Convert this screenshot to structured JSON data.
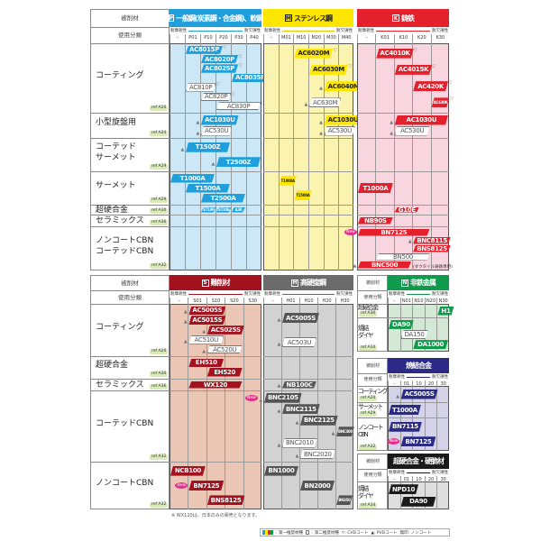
{
  "common": {
    "material": "被削材",
    "usage": "使用分類",
    "wear": "耐摩耗性",
    "chipping": "耐欠損性"
  },
  "top": {
    "rows": [
      {
        "label": "コーティング",
        "ref": "A20"
      },
      {
        "label": "小型旋盤用",
        "ref": "A24"
      },
      {
        "label": "コーテッド\n  サーメット",
        "ref": "A29"
      },
      {
        "label": "サーメット",
        "ref": "A29"
      },
      {
        "label": "超硬合金",
        "ref": "A30"
      },
      {
        "label": "セラミックス",
        "ref": "A36"
      },
      {
        "label": "ノンコートCBN\nコーテッドCBN",
        "ref": "A32"
      }
    ],
    "panels": [
      {
        "code": "P",
        "title": "一般鋼(炭素鋼・合金鋼)、軟鋼",
        "color": "#1f9fdc",
        "bg": "#cce8f7",
        "text": "#fff",
        "columns": [
          "–",
          "P01",
          "P10",
          "P20",
          "P30",
          "P40"
        ],
        "grades": [
          {
            "name": "AC8015P",
            "row": 0,
            "from": "P01",
            "to": "P10",
            "type": "first",
            "coat": "cvd"
          },
          {
            "name": "AC8020P",
            "row": 0,
            "from": "P10",
            "to": "P20",
            "type": "first",
            "coat": "cvd"
          },
          {
            "name": "AC8025P",
            "row": 0,
            "from": "P10",
            "to": "P20",
            "type": "first",
            "coat": "cvd"
          },
          {
            "name": "AC8035P",
            "row": 0,
            "from": "P30",
            "to": "P40",
            "type": "first",
            "coat": "cvd"
          },
          {
            "name": "AC810P",
            "row": 0,
            "from": "P01",
            "to": "P10",
            "type": "second",
            "coat": "cvd"
          },
          {
            "name": "AC820P",
            "row": 0,
            "from": "P10",
            "to": "P20",
            "type": "second",
            "coat": "cvd"
          },
          {
            "name": "AC830P",
            "row": 0,
            "from": "P20",
            "to": "P40",
            "type": "second",
            "coat": "cvd"
          },
          {
            "name": "AC1030U",
            "row": 1,
            "from": "P10",
            "to": "P20",
            "type": "first",
            "coat": "pvd"
          },
          {
            "name": "AC530U",
            "row": 1,
            "from": "P10",
            "to": "P20",
            "type": "second",
            "coat": "pvd"
          },
          {
            "name": "T1500Z",
            "row": 2,
            "from": "P01",
            "to": "P20",
            "type": "first",
            "coat": "pvd"
          },
          {
            "name": "T2500Z",
            "row": 2,
            "from": "P20",
            "to": "P40",
            "type": "first",
            "coat": "pvd"
          },
          {
            "name": "T1000A",
            "row": 3,
            "from": "–",
            "to": "P10",
            "type": "first"
          },
          {
            "name": "T1500A",
            "row": 3,
            "from": "P01",
            "to": "P20",
            "type": "first"
          },
          {
            "name": "T2500A",
            "row": 3,
            "from": "P10",
            "to": "P30",
            "type": "first"
          },
          {
            "name": "ST10P",
            "row": 4,
            "from": "P10",
            "to": "P10",
            "type": "first",
            "lane": 0,
            "tiny": true
          },
          {
            "name": "ST20E",
            "row": 4,
            "from": "P20",
            "to": "P20",
            "type": "first",
            "lane": 0,
            "tiny": true
          },
          {
            "name": "A30",
            "row": 4,
            "from": "P30",
            "to": "P30",
            "type": "first",
            "lane": 0,
            "tiny": true
          }
        ]
      },
      {
        "code": "M",
        "title": "ステンレス鋼",
        "color": "#ffe600",
        "bg": "#fbf3b0",
        "text": "#222",
        "columns": [
          "–",
          "M01",
          "M10",
          "M20",
          "M30",
          "M40"
        ],
        "grades": [
          {
            "name": "AC6020M",
            "row": 0,
            "from": "M10",
            "to": "M20",
            "type": "first",
            "coat": "cvd"
          },
          {
            "name": "AC6030M",
            "row": 0,
            "from": "M20",
            "to": "M30",
            "type": "first",
            "coat": "cvd"
          },
          {
            "name": "AC6040M",
            "row": 0,
            "from": "M30",
            "to": "M40",
            "type": "first",
            "coat": "pvd"
          },
          {
            "name": "AC630M",
            "row": 0,
            "from": "M20",
            "to": "M30",
            "type": "second",
            "coat": "pvd"
          },
          {
            "name": "AC1030U",
            "row": 1,
            "from": "M30",
            "to": "M40",
            "type": "first",
            "coat": "pvd"
          },
          {
            "name": "AC530U",
            "row": 1,
            "from": "M30",
            "to": "M40",
            "type": "second",
            "coat": "pvd"
          },
          {
            "name": "T1000A",
            "row": 3,
            "from": "M01",
            "to": "M01",
            "type": "first",
            "tiny": true
          },
          {
            "name": "T1500A",
            "row": 3,
            "from": "M10",
            "to": "M10",
            "type": "first",
            "tiny": true
          }
        ]
      },
      {
        "code": "K",
        "title": "鋳鉄",
        "color": "#e3202c",
        "bg": "#f8d5df",
        "text": "#fff",
        "columns": [
          "–",
          "K01",
          "K10",
          "K20",
          "K30"
        ],
        "grades": [
          {
            "name": "AC4010K",
            "row": 0,
            "from": "K01",
            "to": "K10",
            "type": "first",
            "coat": "cvd"
          },
          {
            "name": "AC4015K",
            "row": 0,
            "from": "K10",
            "to": "K20",
            "type": "first",
            "coat": "cvd"
          },
          {
            "name": "AC420K",
            "row": 0,
            "from": "K20",
            "to": "K30",
            "type": "first",
            "coat": "cvd"
          },
          {
            "name": "AC430K",
            "row": 0,
            "from": "K30",
            "to": "K30",
            "type": "first",
            "coat": "cvd",
            "tiny": true
          },
          {
            "name": "AC1030U",
            "row": 1,
            "from": "K10",
            "to": "K30",
            "type": "first",
            "coat": "pvd"
          },
          {
            "name": "AC530U",
            "row": 1,
            "from": "K10",
            "to": "K20",
            "type": "second",
            "coat": "pvd"
          },
          {
            "name": "T1000A",
            "row": 3,
            "from": "–",
            "to": "K01",
            "type": "first"
          },
          {
            "name": "G10E",
            "row": 4,
            "from": "K10",
            "to": "K10",
            "type": "first"
          },
          {
            "name": "NB90S",
            "row": 5,
            "from": "–",
            "to": "K01",
            "type": "first"
          },
          {
            "name": "BN7125",
            "row": 6,
            "from": "–",
            "to": "K20",
            "type": "first",
            "new": true
          },
          {
            "name": "BNC8115",
            "row": 6,
            "from": "K20",
            "to": "K30",
            "type": "first",
            "coat": "pvd"
          },
          {
            "name": "BNS8125",
            "row": 6,
            "from": "K20",
            "to": "K30",
            "type": "first"
          },
          {
            "name": "BN500",
            "row": 6,
            "from": "K01",
            "to": "K20",
            "type": "second"
          },
          {
            "name": "BNC500",
            "row": 6,
            "from": "–",
            "to": "K10",
            "type": "first",
            "coat": "pvd",
            "note": "(ダクタイル鋳鉄専用)"
          }
        ]
      }
    ]
  },
  "bottom": {
    "rows": [
      {
        "label": "コーティング",
        "ref": "A20"
      },
      {
        "label": "超硬合金",
        "ref": "A30"
      },
      {
        "label": "セラミックス",
        "ref": "A36"
      },
      {
        "label": "コーテッドCBN",
        "ref": "A32"
      },
      {
        "label": "ノンコートCBN",
        "ref": "A32"
      }
    ],
    "panels": [
      {
        "code": "S",
        "title": "難削材",
        "color": "#a3121f",
        "bg": "#ebc6b4",
        "text": "#fff",
        "columns": [
          "–",
          "S01",
          "S10",
          "S20",
          "S30"
        ],
        "grades": [
          {
            "name": "AC5005S",
            "row": 0,
            "from": "S01",
            "to": "S01",
            "type": "first",
            "coat": "pvd"
          },
          {
            "name": "AC5015S",
            "row": 0,
            "from": "S01",
            "to": "S10",
            "type": "first",
            "coat": "pvd"
          },
          {
            "name": "AC5025S",
            "row": 0,
            "from": "S10",
            "to": "S20",
            "type": "first",
            "coat": "pvd"
          },
          {
            "name": "AC510U",
            "row": 0,
            "from": "S01",
            "to": "S10",
            "type": "second",
            "coat": "pvd"
          },
          {
            "name": "AC520U",
            "row": 0,
            "from": "S10",
            "to": "S20",
            "type": "second",
            "coat": "pvd"
          },
          {
            "name": "EH510",
            "row": 1,
            "from": "S01",
            "to": "S10",
            "type": "first"
          },
          {
            "name": "EH520",
            "row": 1,
            "from": "S10",
            "to": "S20",
            "type": "first"
          },
          {
            "name": "WX120",
            "row": 2,
            "from": "S01",
            "to": "S20",
            "type": "first"
          },
          {
            "name": "NCB100",
            "row": 4,
            "from": "–",
            "to": "S01",
            "type": "first"
          },
          {
            "name": "BN7125",
            "row": 4,
            "from": "S01",
            "to": "S10",
            "type": "first",
            "new": true
          },
          {
            "name": "BNS8125",
            "row": 4,
            "from": "S10",
            "to": "S20",
            "type": "first"
          }
        ]
      },
      {
        "code": "H",
        "title": "高硬度鋼",
        "color": "#6b6b6b",
        "bg": "#d2d2d2",
        "text": "#fff",
        "grade": "#555",
        "columns": [
          "–",
          "H01",
          "H10",
          "H20",
          "H30"
        ],
        "grades": [
          {
            "name": "AC5005S",
            "row": 0,
            "from": "H01",
            "to": "H10",
            "type": "first",
            "coat": "pvd"
          },
          {
            "name": "AC503U",
            "row": 0,
            "from": "H01",
            "to": "H10",
            "type": "second",
            "coat": "pvd"
          },
          {
            "name": "NB100C",
            "row": 2,
            "from": "H01",
            "to": "H10",
            "type": "first",
            "coat": "pvd"
          },
          {
            "name": "BNC2105",
            "row": 3,
            "from": "–",
            "to": "H01",
            "type": "first",
            "coat": "pvd",
            "new": true
          },
          {
            "name": "BNC2115",
            "row": 3,
            "from": "H01",
            "to": "H10",
            "type": "first",
            "coat": "pvd"
          },
          {
            "name": "BNC2125",
            "row": 3,
            "from": "H10",
            "to": "H20",
            "type": "first",
            "coat": "pvd"
          },
          {
            "name": "BNC300",
            "row": 3,
            "from": "H30",
            "to": "H30",
            "type": "first",
            "coat": "pvd",
            "tiny": true
          },
          {
            "name": "BNC2010",
            "row": 3,
            "from": "H01",
            "to": "H10",
            "type": "second",
            "coat": "pvd"
          },
          {
            "name": "BNC2020",
            "row": 3,
            "from": "H10",
            "to": "H20",
            "type": "second",
            "coat": "pvd"
          },
          {
            "name": "BN1000",
            "row": 4,
            "from": "–",
            "to": "H01",
            "type": "first"
          },
          {
            "name": "BN2000",
            "row": 4,
            "from": "H10",
            "to": "H20",
            "type": "first"
          },
          {
            "name": "BN350",
            "row": 4,
            "from": "H30",
            "to": "H30",
            "type": "first",
            "tiny": true
          }
        ]
      }
    ]
  },
  "side": [
    {
      "code": "N",
      "title": "非鉄金属",
      "color": "#109a4b",
      "bg": "#d3e9d6",
      "text": "#fff",
      "columns": [
        "–",
        "N01",
        "N10",
        "N20",
        "N30"
      ],
      "rows": [
        {
          "label": "超硬合金",
          "ref": "A30"
        },
        {
          "label": "焼結\nダイヤ",
          "ref": "A34"
        }
      ],
      "grades": [
        {
          "name": "H1",
          "row": 0,
          "from": "N30",
          "to": "N30",
          "type": "first"
        },
        {
          "name": "DA90",
          "row": 1,
          "from": "–",
          "to": "–",
          "type": "first"
        },
        {
          "name": "DA150",
          "row": 1,
          "from": "N01",
          "to": "N10",
          "type": "second"
        },
        {
          "name": "DA1000",
          "row": 1,
          "from": "N10",
          "to": "N30",
          "type": "first"
        }
      ]
    },
    {
      "code": "",
      "title": "焼結合金",
      "color": "#2b2a86",
      "bg": "#d5d3e8",
      "text": "#fff",
      "columns": [
        "–",
        "01",
        "10",
        "20",
        "30"
      ],
      "rows": [
        {
          "label": "コーティング",
          "ref": "A20"
        },
        {
          "label": "サーメット",
          "ref": "A29"
        },
        {
          "label": "ノンコート\nCBN",
          "ref": "A32"
        }
      ],
      "grades": [
        {
          "name": "AC5005S",
          "row": 0,
          "from": "01",
          "to": "20",
          "type": "first",
          "coat": "pvd"
        },
        {
          "name": "T1000A",
          "row": 1,
          "from": "–",
          "to": "01",
          "type": "first"
        },
        {
          "name": "BN7115",
          "row": 2,
          "from": "–",
          "to": "01",
          "type": "first"
        },
        {
          "name": "BN7125",
          "row": 2,
          "from": "01",
          "to": "20",
          "type": "first",
          "new": true
        }
      ]
    },
    {
      "code": "",
      "title": "超硬合金・硬脆材",
      "color": "#1a1a1a",
      "bg": "#dedede",
      "text": "#fff",
      "columns": [
        "–",
        "01",
        "10",
        "20",
        "30"
      ],
      "rows": [
        {
          "label": "焼結\nダイヤ",
          "ref": "A34"
        }
      ],
      "grades": [
        {
          "name": "NPD10",
          "row": 0,
          "from": "–",
          "to": "01",
          "type": "first"
        },
        {
          "name": "DA90",
          "row": 0,
          "from": "01",
          "to": "20",
          "type": "first"
        }
      ]
    }
  ],
  "new_badge": "New",
  "ref_icon": "book-ref-icon",
  "footnote": "※ WX120は、日本のみの販売となります。",
  "legend": {
    "first": ": 第一推奨材種",
    "second": ": 第二推奨材種",
    "cvd": "▽: CVDコート",
    "pvd": "▲: PVDコート",
    "none": "無印: ノンコート"
  }
}
